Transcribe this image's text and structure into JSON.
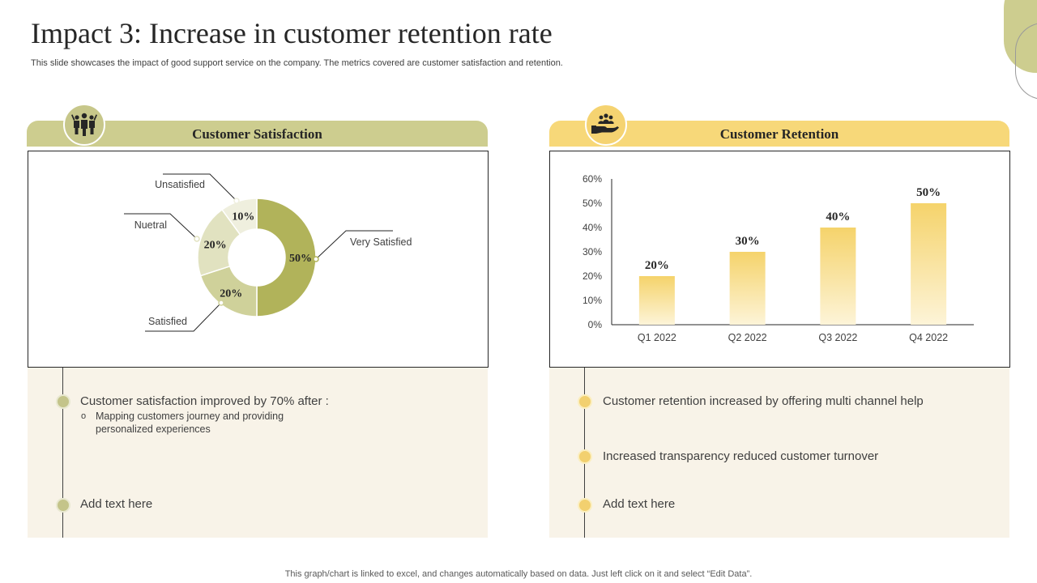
{
  "slide": {
    "title": "Impact 3: Increase in customer retention rate",
    "subtitle": "This slide showcases the impact of good support service on the company. The metrics covered are customer satisfaction and retention.",
    "footer": "This graph/chart is linked to excel,  and changes automatically based on data. Just left click on it and select “Edit Data”."
  },
  "satisfaction": {
    "header": "Customer Satisfaction",
    "icon": "team-celebration-icon",
    "bullets": [
      {
        "text": "Customer satisfaction improved by 70% after :"
      },
      {
        "text": "Add text here"
      }
    ],
    "sub_bullet_marker": "o",
    "sub_bullet": "Mapping customers journey  and providing personalized  experiences"
  },
  "retention": {
    "header": "Customer Retention",
    "icon": "handshake-support-icon",
    "bullets": [
      {
        "text": "Customer retention increased by offering multi channel help"
      },
      {
        "text": "Increased transparency reduced customer turnover"
      },
      {
        "text": "Add text here"
      }
    ]
  },
  "colors": {
    "olive": "#b1b35a",
    "olive_light": "#cdcd8f",
    "yellow": "#f7d879",
    "panel_bg": "#f8f3e8"
  },
  "chart_data": [
    {
      "type": "pie",
      "subtype": "donut",
      "title": "Customer Satisfaction",
      "categories": [
        "Very Satisfied",
        "Satisfied",
        "Nuetral",
        "Unsatisfied"
      ],
      "values": [
        50,
        20,
        20,
        10
      ],
      "value_labels": [
        "50%",
        "20%",
        "20%",
        "10%"
      ],
      "colors": [
        "#b1b35a",
        "#cfd19a",
        "#e1e2c0",
        "#efefde"
      ]
    },
    {
      "type": "bar",
      "title": "Customer Retention",
      "categories": [
        "Q1 2022",
        "Q2 2022",
        "Q3 2022",
        "Q4 2022"
      ],
      "values": [
        20,
        30,
        40,
        50
      ],
      "value_labels": [
        "20%",
        "30%",
        "40%",
        "50%"
      ],
      "ylim": [
        0,
        60
      ],
      "yticks": [
        "0%",
        "10%",
        "20%",
        "30%",
        "40%",
        "50%",
        "60%"
      ],
      "xlabel": "",
      "ylabel": ""
    }
  ]
}
